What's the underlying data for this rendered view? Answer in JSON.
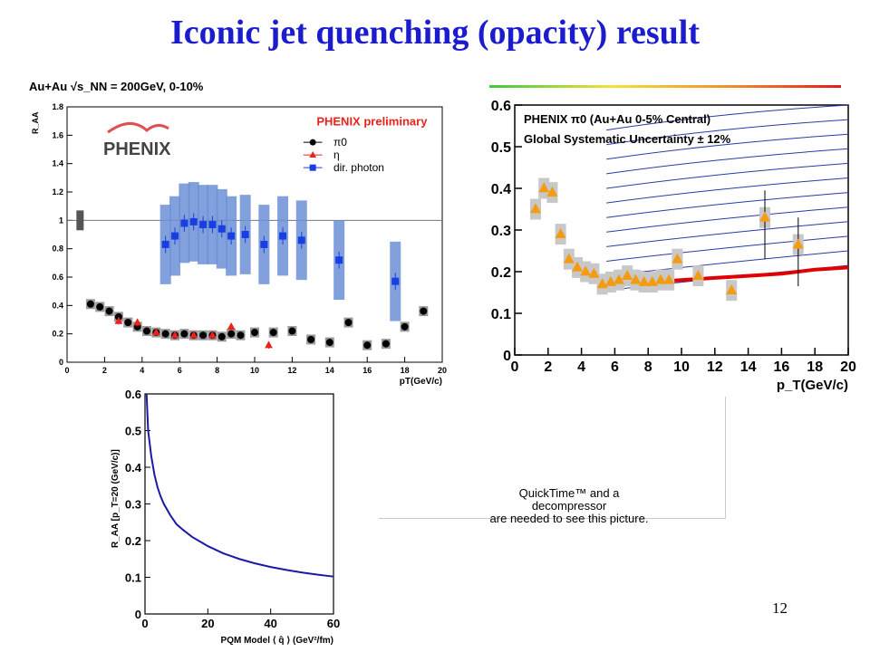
{
  "slide": {
    "title": "Iconic jet quenching (opacity) result",
    "page_number": "12",
    "placeholder_lines": [
      "QuickTime™ and a",
      "decompressor",
      "are needed to see this picture."
    ]
  },
  "colors": {
    "title": "#1c1ccf",
    "pi0": "#000000",
    "eta": "#e8231c",
    "photon": "#1a3fe0",
    "theory_band": "#e00000",
    "pqm_curve": "#1a1aa8",
    "orange": "#f39c12"
  },
  "chart_data": [
    {
      "type": "scatter",
      "header": "Au+Au √s_NN = 200GeV, 0-10%",
      "xlabel": "pT(GeV/c)",
      "ylabel": "R_AA",
      "xlim": [
        0,
        20
      ],
      "ylim": [
        0,
        1.8
      ],
      "xticks": [
        0,
        2,
        4,
        6,
        8,
        10,
        12,
        14,
        16,
        18,
        20
      ],
      "yticks": [
        0,
        0.2,
        0.4,
        0.6,
        0.8,
        1,
        1.2,
        1.4,
        1.6,
        1.8
      ],
      "logo": "PHENIX",
      "annotation": "PHENIX preliminary",
      "legend_position": "top-right",
      "reference_line": 1,
      "series": [
        {
          "name": "π0",
          "marker": "circle",
          "color": "#000000",
          "x": [
            1.25,
            1.75,
            2.25,
            2.75,
            3.25,
            3.75,
            4.25,
            4.75,
            5.25,
            5.75,
            6.25,
            6.75,
            7.25,
            7.75,
            8.25,
            8.75,
            9.25,
            10,
            11,
            12,
            13,
            14,
            15,
            16,
            17,
            18,
            19
          ],
          "y": [
            0.41,
            0.39,
            0.36,
            0.32,
            0.28,
            0.25,
            0.22,
            0.21,
            0.2,
            0.19,
            0.2,
            0.19,
            0.19,
            0.19,
            0.18,
            0.2,
            0.19,
            0.21,
            0.21,
            0.22,
            0.16,
            0.14,
            0.28,
            0.12,
            0.13,
            0.25,
            0.36
          ]
        },
        {
          "name": "η",
          "marker": "triangle",
          "color": "#e8231c",
          "x": [
            2.75,
            3.75,
            4.75,
            5.75,
            6.75,
            7.75,
            8.75,
            10.75
          ],
          "y": [
            0.29,
            0.28,
            0.21,
            0.19,
            0.19,
            0.19,
            0.25,
            0.12
          ]
        },
        {
          "name": "dir. photon",
          "marker": "square",
          "color": "#1a3fe0",
          "x": [
            5.25,
            5.75,
            6.25,
            6.75,
            7.25,
            7.75,
            8.25,
            8.75,
            9.5,
            10.5,
            11.5,
            12.5,
            14.5,
            17.5
          ],
          "y": [
            0.83,
            0.89,
            0.98,
            0.99,
            0.97,
            0.97,
            0.94,
            0.89,
            0.9,
            0.83,
            0.89,
            0.86,
            0.72,
            0.57
          ]
        }
      ]
    },
    {
      "type": "scatter",
      "xlabel": "p_T(GeV/c)",
      "ylabel": "",
      "xlim": [
        0,
        20
      ],
      "ylim": [
        0,
        0.6
      ],
      "xticks": [
        0,
        2,
        4,
        6,
        8,
        10,
        12,
        14,
        16,
        18,
        20
      ],
      "yticks": [
        0,
        0.1,
        0.2,
        0.3,
        0.4,
        0.5,
        0.6
      ],
      "annotations": [
        "PHENIX π0 (Au+Au 0-5% Central)",
        "Global Systematic Uncertainty ± 12%"
      ],
      "series": [
        {
          "name": "π0",
          "marker": "triangle",
          "color": "#f39c12",
          "x": [
            1.25,
            1.75,
            2.25,
            2.75,
            3.25,
            3.75,
            4.25,
            4.75,
            5.25,
            5.75,
            6.25,
            6.75,
            7.25,
            7.75,
            8.25,
            8.75,
            9.25,
            9.75,
            11,
            13,
            15,
            17
          ],
          "y": [
            0.35,
            0.4,
            0.39,
            0.29,
            0.23,
            0.21,
            0.2,
            0.195,
            0.17,
            0.175,
            0.18,
            0.19,
            0.18,
            0.175,
            0.175,
            0.18,
            0.18,
            0.23,
            0.19,
            0.155,
            0.33,
            0.265
          ]
        },
        {
          "name": "theory curve",
          "marker": "none",
          "color": "#e00000",
          "x": [
            5.5,
            8,
            10,
            12,
            14,
            16,
            18,
            20
          ],
          "y": [
            0.165,
            0.175,
            0.18,
            0.185,
            0.19,
            0.195,
            0.205,
            0.21
          ]
        }
      ]
    },
    {
      "type": "line",
      "xlabel": "PQM Model ⟨ q̂ ⟩ (GeV²/fm)",
      "ylabel": "R_AA [p_T=20 (GeV/c)]",
      "xlim": [
        0,
        60
      ],
      "ylim": [
        0,
        0.6
      ],
      "xticks": [
        0,
        20,
        40,
        60
      ],
      "yticks": [
        0,
        0.1,
        0.2,
        0.3,
        0.4,
        0.5,
        0.6
      ],
      "series": [
        {
          "name": "",
          "color": "#1a1aa8",
          "x": [
            0.5,
            1,
            2,
            3,
            4,
            5,
            6,
            8,
            10,
            12,
            15,
            18,
            20,
            25,
            30,
            35,
            40,
            45,
            50,
            55,
            60
          ],
          "y": [
            0.6,
            0.5,
            0.43,
            0.38,
            0.345,
            0.32,
            0.3,
            0.27,
            0.245,
            0.23,
            0.21,
            0.195,
            0.185,
            0.165,
            0.15,
            0.138,
            0.128,
            0.12,
            0.113,
            0.107,
            0.102
          ]
        }
      ]
    }
  ]
}
